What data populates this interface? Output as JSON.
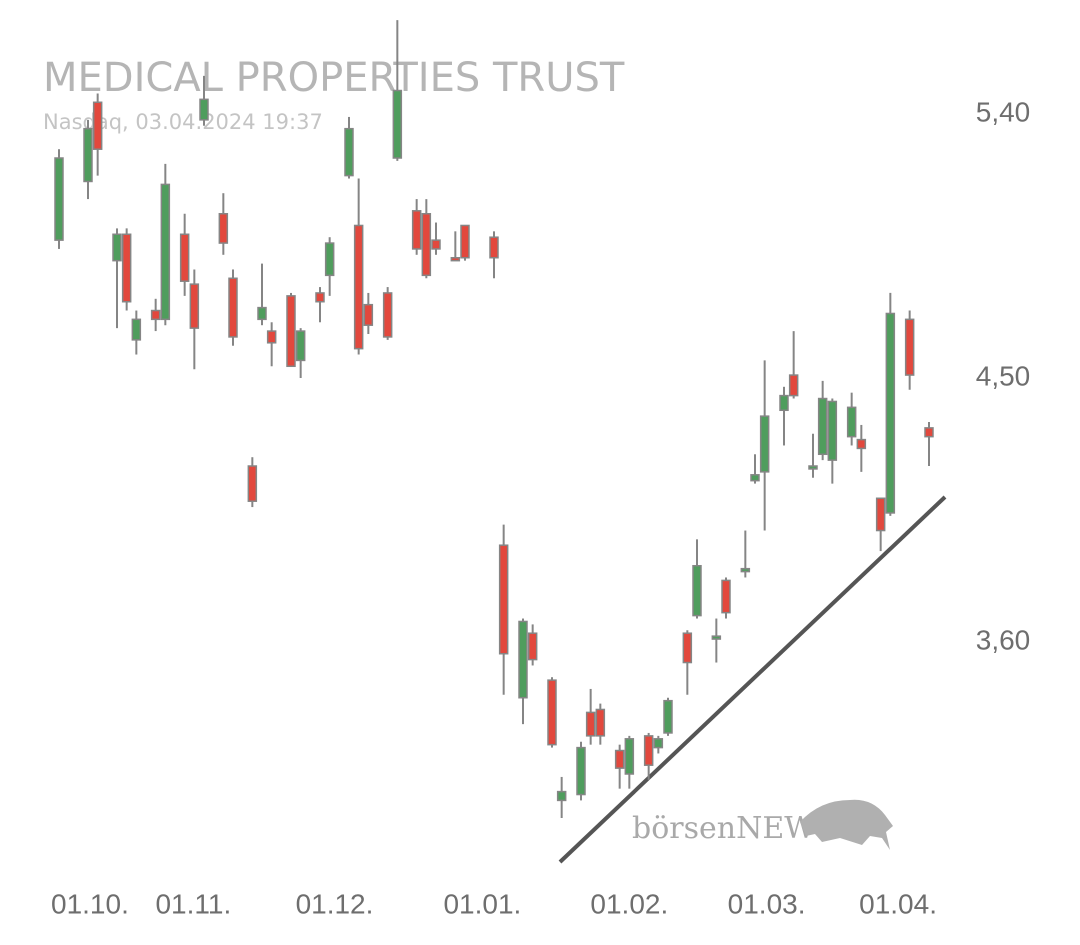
{
  "chart_data": {
    "type": "candlestick",
    "title": "MEDICAL PROPERTIES TRUST",
    "subtitle": "Nasdaq, 03.04.2024 19:37",
    "watermark": "börsenNEWS",
    "up_color": "#4f9d5d",
    "down_color": "#e2483d",
    "x": [
      0,
      3,
      4,
      6,
      7,
      8,
      10,
      11,
      13,
      14,
      15,
      17,
      18,
      20,
      21,
      22,
      24,
      25,
      27,
      28,
      30,
      31,
      32,
      34,
      35,
      37,
      38,
      39,
      41,
      42,
      45,
      46,
      48,
      49,
      51,
      52,
      54,
      55,
      56,
      58,
      59,
      61,
      62,
      63,
      65,
      66,
      68,
      69,
      71,
      72,
      73,
      75,
      76,
      78,
      79,
      80,
      82,
      83,
      85,
      86,
      88,
      90
    ],
    "open": [
      4.97,
      5.17,
      5.44,
      4.9,
      4.99,
      4.63,
      4.73,
      4.7,
      4.99,
      4.82,
      5.38,
      5.06,
      4.84,
      4.2,
      4.7,
      4.66,
      4.78,
      4.56,
      4.79,
      4.85,
      5.19,
      5.02,
      4.75,
      4.79,
      5.25,
      5.07,
      5.06,
      4.97,
      4.91,
      5.02,
      4.98,
      3.93,
      3.41,
      3.63,
      3.47,
      3.06,
      3.08,
      3.36,
      3.37,
      3.23,
      3.15,
      3.28,
      3.24,
      3.29,
      3.63,
      3.69,
      3.61,
      3.81,
      3.84,
      4.15,
      4.18,
      4.39,
      4.51,
      4.19,
      4.24,
      4.22,
      4.3,
      4.29,
      4.09,
      4.04,
      4.7,
      4.33
    ],
    "high": [
      5.28,
      5.38,
      5.47,
      5.01,
      5.01,
      4.73,
      4.77,
      5.23,
      5.06,
      4.87,
      5.53,
      5.13,
      4.87,
      4.23,
      4.89,
      4.69,
      4.79,
      4.67,
      4.81,
      4.98,
      5.39,
      5.18,
      4.79,
      4.81,
      5.72,
      5.11,
      5.11,
      5.03,
      5.0,
      5.02,
      5.0,
      4.0,
      3.68,
      3.66,
      3.48,
      3.14,
      3.26,
      3.44,
      3.39,
      3.25,
      3.28,
      3.29,
      3.28,
      3.41,
      3.64,
      3.95,
      3.68,
      3.82,
      3.98,
      4.24,
      4.56,
      4.47,
      4.66,
      4.31,
      4.49,
      4.43,
      4.45,
      4.34,
      4.09,
      4.79,
      4.73,
      4.35
    ],
    "low": [
      4.94,
      5.11,
      5.19,
      4.67,
      4.73,
      4.58,
      4.66,
      4.68,
      4.78,
      4.53,
      5.36,
      4.92,
      4.61,
      4.06,
      4.68,
      4.54,
      4.54,
      4.5,
      4.69,
      4.78,
      5.18,
      4.58,
      4.65,
      4.63,
      5.24,
      4.92,
      4.84,
      4.92,
      4.9,
      4.9,
      4.84,
      3.42,
      3.32,
      3.52,
      3.24,
      3.0,
      3.06,
      3.25,
      3.25,
      3.1,
      3.1,
      3.13,
      3.22,
      3.28,
      3.42,
      3.68,
      3.53,
      3.68,
      3.82,
      4.14,
      3.98,
      4.27,
      4.43,
      4.16,
      4.22,
      4.14,
      4.27,
      4.18,
      3.91,
      4.03,
      4.46,
      4.2
    ],
    "close": [
      5.25,
      5.35,
      5.28,
      4.99,
      4.76,
      4.7,
      4.7,
      5.16,
      4.83,
      4.67,
      5.45,
      4.96,
      4.64,
      4.08,
      4.74,
      4.62,
      4.54,
      4.66,
      4.76,
      4.96,
      5.35,
      4.6,
      4.68,
      4.64,
      5.48,
      4.94,
      4.85,
      4.94,
      4.9,
      4.91,
      4.91,
      3.56,
      3.67,
      3.54,
      3.25,
      3.09,
      3.24,
      3.28,
      3.28,
      3.17,
      3.27,
      3.18,
      3.27,
      3.4,
      3.53,
      3.86,
      3.62,
      3.7,
      3.85,
      4.17,
      4.37,
      4.44,
      4.44,
      4.2,
      4.43,
      4.42,
      4.4,
      4.26,
      3.98,
      4.72,
      4.51,
      4.3
    ],
    "xlim": [
      -1.5,
      91.5
    ],
    "xticks": [
      {
        "value": 3.2,
        "label": "01.10."
      },
      {
        "value": 13.9,
        "label": "01.11."
      },
      {
        "value": 28.5,
        "label": "01.12."
      },
      {
        "value": 43.8,
        "label": "01.01."
      },
      {
        "value": 59,
        "label": "01.02."
      },
      {
        "value": 73.2,
        "label": "01.03."
      },
      {
        "value": 86.8,
        "label": "01.04."
      }
    ],
    "ylim": [
      2.8,
      5.8
    ],
    "yticks": [
      {
        "value": 3.6,
        "label": "3,60"
      },
      {
        "value": 4.5,
        "label": "4,50"
      },
      {
        "value": 5.4,
        "label": "5,40"
      }
    ]
  }
}
